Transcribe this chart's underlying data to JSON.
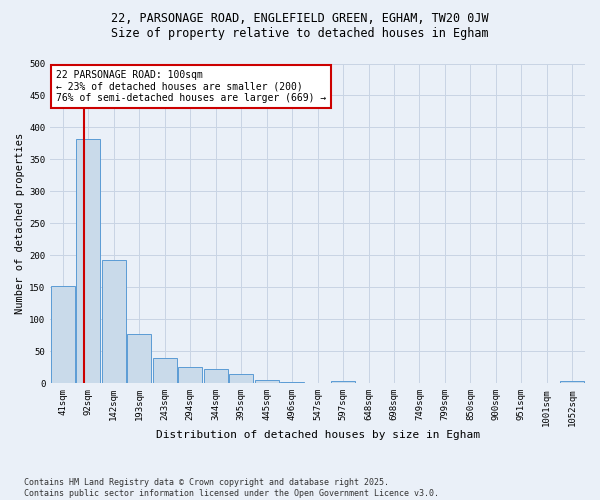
{
  "title1": "22, PARSONAGE ROAD, ENGLEFIELD GREEN, EGHAM, TW20 0JW",
  "title2": "Size of property relative to detached houses in Egham",
  "xlabel": "Distribution of detached houses by size in Egham",
  "ylabel": "Number of detached properties",
  "bar_labels": [
    "41sqm",
    "92sqm",
    "142sqm",
    "193sqm",
    "243sqm",
    "294sqm",
    "344sqm",
    "395sqm",
    "445sqm",
    "496sqm",
    "547sqm",
    "597sqm",
    "648sqm",
    "698sqm",
    "749sqm",
    "799sqm",
    "850sqm",
    "900sqm",
    "951sqm",
    "1001sqm",
    "1052sqm"
  ],
  "bar_values": [
    152,
    382,
    193,
    77,
    39,
    26,
    22,
    15,
    6,
    2,
    0,
    4,
    0,
    0,
    0,
    0,
    0,
    0,
    0,
    0,
    3
  ],
  "bar_color": "#c9daea",
  "bar_edge_color": "#5b9bd5",
  "grid_color": "#c8d4e4",
  "background_color": "#eaf0f8",
  "annotation_box_text": "22 PARSONAGE ROAD: 100sqm\n← 23% of detached houses are smaller (200)\n76% of semi-detached houses are larger (669) →",
  "annotation_box_color": "#ffffff",
  "annotation_box_edge_color": "#cc0000",
  "vline_x": 0.82,
  "vline_color": "#cc0000",
  "footnote": "Contains HM Land Registry data © Crown copyright and database right 2025.\nContains public sector information licensed under the Open Government Licence v3.0.",
  "ylim": [
    0,
    500
  ],
  "yticks": [
    0,
    50,
    100,
    150,
    200,
    250,
    300,
    350,
    400,
    450,
    500
  ],
  "title1_fontsize": 8.5,
  "title2_fontsize": 8.5,
  "xlabel_fontsize": 8,
  "ylabel_fontsize": 7.5,
  "tick_fontsize": 6.5,
  "annot_fontsize": 7.0,
  "footnote_fontsize": 6.0
}
